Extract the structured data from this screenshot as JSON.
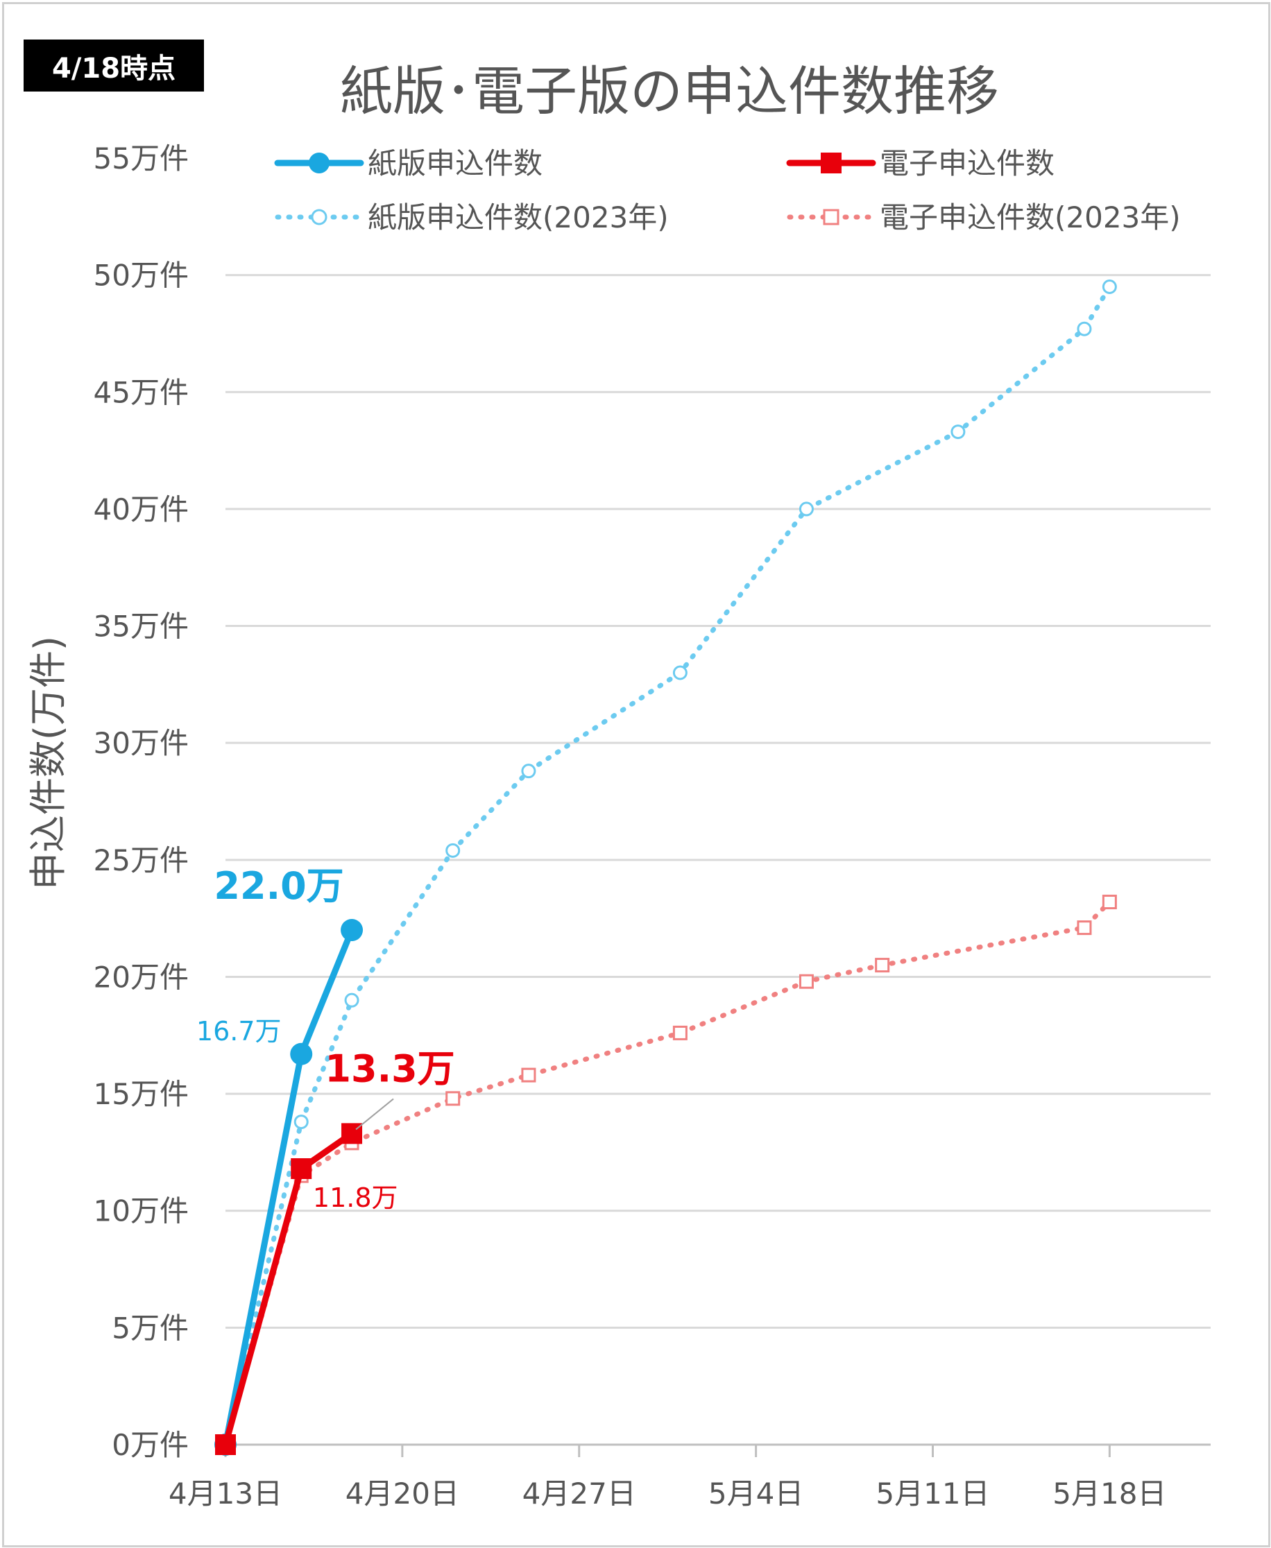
{
  "badge": "4/18時点",
  "colors": {
    "paper": "#1aa7e0",
    "paper_2023": "#6ccbf0",
    "digital": "#e8000b",
    "digital_2023": "#f08080",
    "grid": "#d9d9d9"
  },
  "chart_data": {
    "type": "line",
    "title": "紙版･電子版の申込件数推移",
    "ylabel": "申込件数(万件)",
    "xlabel": "",
    "y_unit_suffix": "万件",
    "ylim": [
      0,
      55
    ],
    "yticks": [
      0,
      5,
      10,
      15,
      20,
      25,
      30,
      35,
      40,
      45,
      50,
      55
    ],
    "xlim": [
      "4/13",
      "5/22"
    ],
    "xticks": [
      {
        "date": "4/13",
        "label": "4月13日"
      },
      {
        "date": "4/20",
        "label": "4月20日"
      },
      {
        "date": "4/27",
        "label": "4月27日"
      },
      {
        "date": "5/4",
        "label": "5月4日"
      },
      {
        "date": "5/11",
        "label": "5月11日"
      },
      {
        "date": "5/18",
        "label": "5月18日"
      }
    ],
    "grid": true,
    "legend_position": "top",
    "series": [
      {
        "name": "紙版申込件数",
        "style": "solid",
        "marker": "circle",
        "color": "#1aa7e0",
        "points": [
          [
            "4/13",
            0
          ],
          [
            "4/16",
            16.7
          ],
          [
            "4/18",
            22.0
          ]
        ]
      },
      {
        "name": "電子申込件数",
        "style": "solid",
        "marker": "square",
        "color": "#e8000b",
        "points": [
          [
            "4/13",
            0
          ],
          [
            "4/16",
            11.8
          ],
          [
            "4/18",
            13.3
          ]
        ]
      },
      {
        "name": "紙版申込件数(2023年)",
        "style": "dotted",
        "marker": "circle-open",
        "color": "#6ccbf0",
        "points": [
          [
            "4/13",
            0
          ],
          [
            "4/16",
            13.8
          ],
          [
            "4/18",
            19.0
          ],
          [
            "4/22",
            25.4
          ],
          [
            "4/25",
            28.8
          ],
          [
            "5/1",
            33.0
          ],
          [
            "5/6",
            40.0
          ],
          [
            "5/12",
            43.3
          ],
          [
            "5/17",
            47.7
          ],
          [
            "5/18",
            49.5
          ]
        ]
      },
      {
        "name": "電子申込件数(2023年)",
        "style": "dotted",
        "marker": "square-open",
        "color": "#f08080",
        "points": [
          [
            "4/13",
            0
          ],
          [
            "4/16",
            11.5
          ],
          [
            "4/18",
            12.9
          ],
          [
            "4/22",
            14.8
          ],
          [
            "4/25",
            15.8
          ],
          [
            "5/1",
            17.6
          ],
          [
            "5/6",
            19.8
          ],
          [
            "5/9",
            20.5
          ],
          [
            "5/17",
            22.1
          ],
          [
            "5/18",
            23.2
          ]
        ]
      }
    ],
    "annotations": [
      {
        "text": "22.0万",
        "series": 0,
        "point": 2,
        "emphasis": true
      },
      {
        "text": "16.7万",
        "series": 0,
        "point": 1,
        "emphasis": false
      },
      {
        "text": "13.3万",
        "series": 1,
        "point": 2,
        "emphasis": true
      },
      {
        "text": "11.8万",
        "series": 1,
        "point": 1,
        "emphasis": false
      }
    ]
  }
}
